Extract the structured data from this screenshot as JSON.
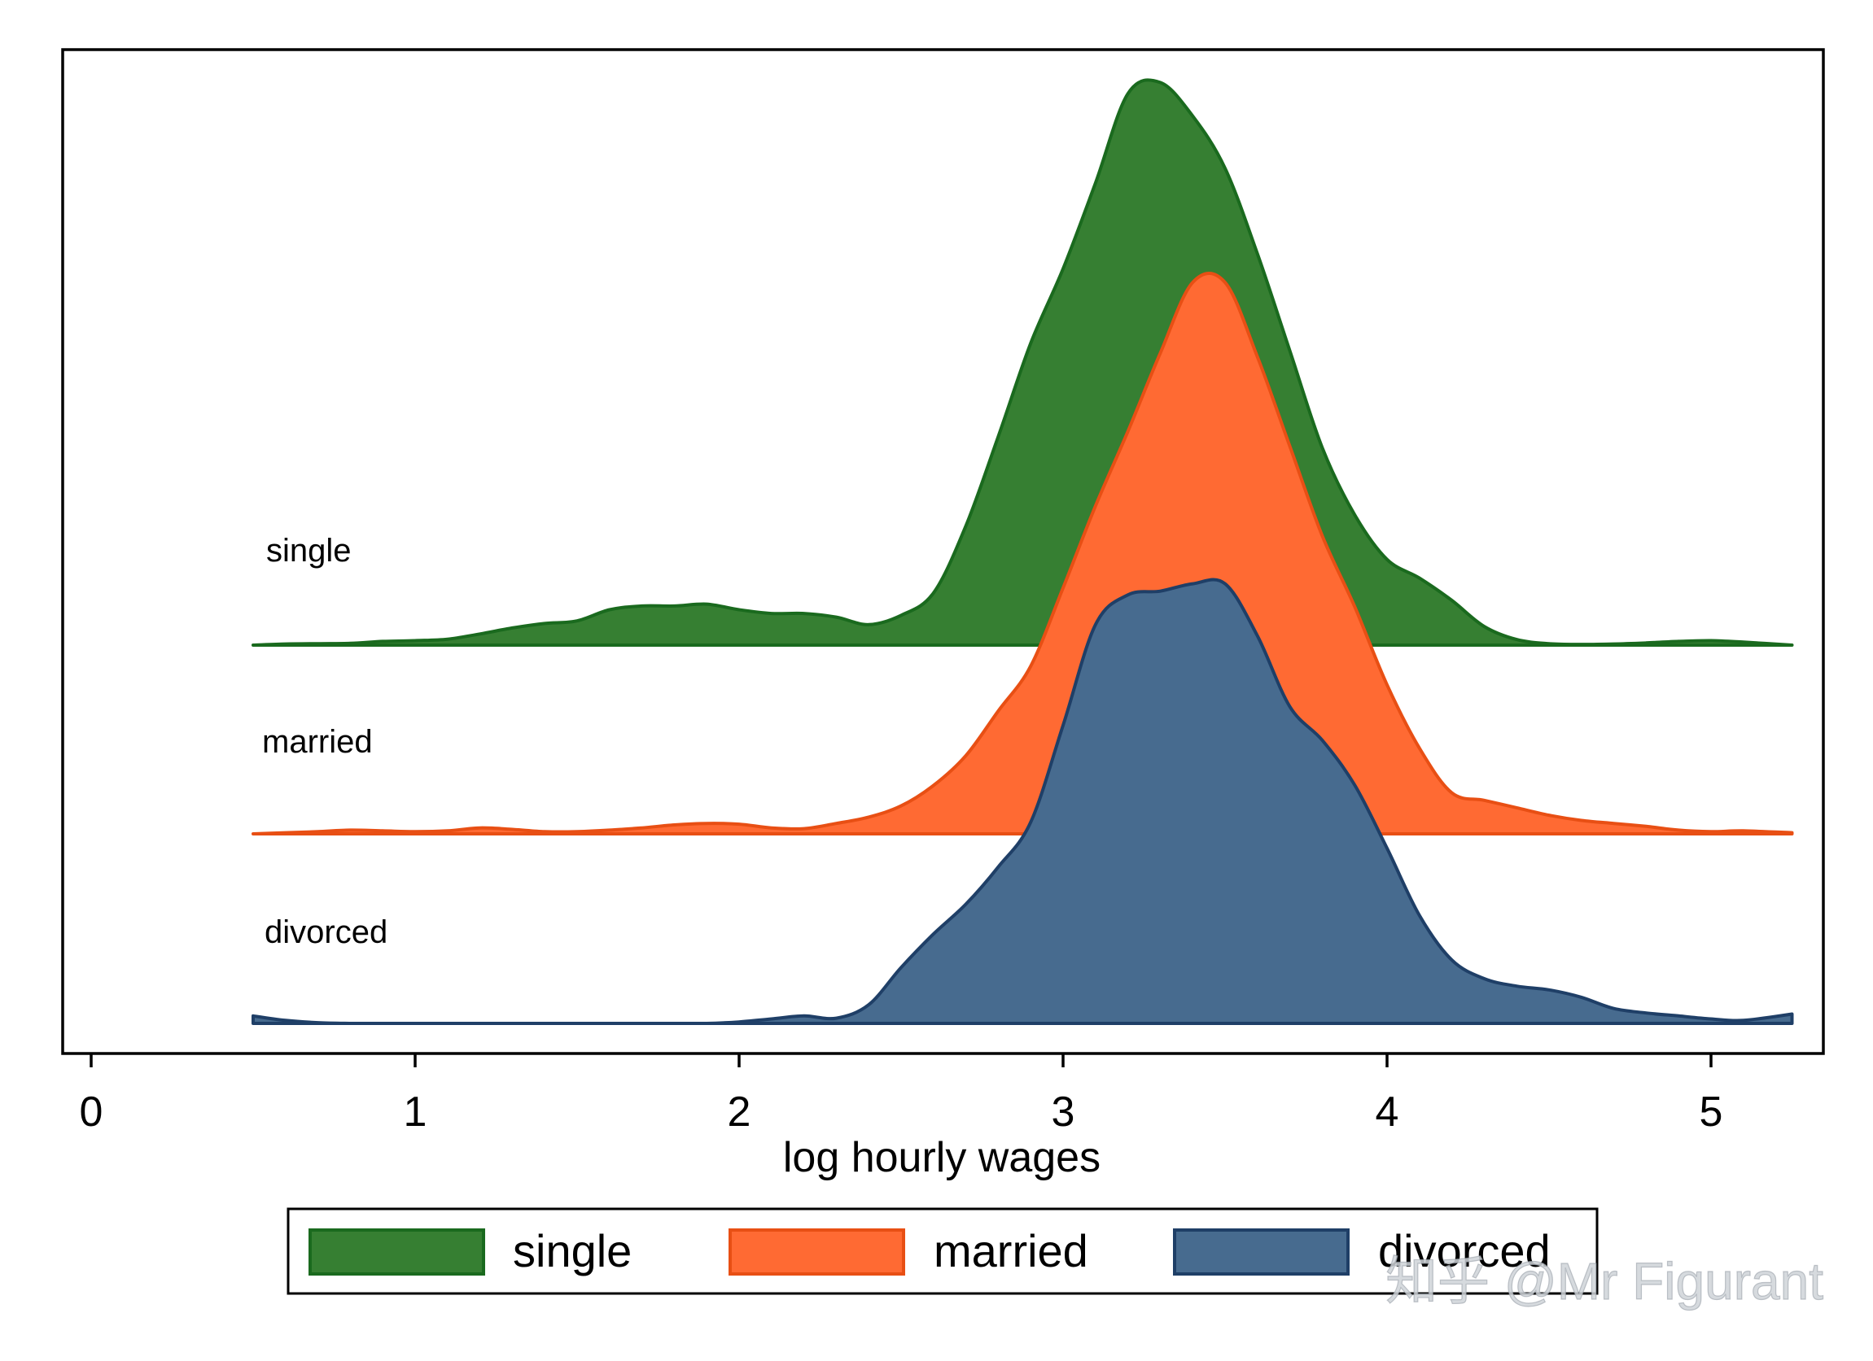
{
  "chart_data": {
    "type": "area",
    "subtype": "ridgeline-density",
    "title": "",
    "xlabel": "log hourly wages",
    "ylabel": "",
    "xlim": [
      0,
      5.3
    ],
    "x_ticks": [
      0,
      1,
      2,
      3,
      4,
      5
    ],
    "x_tick_labels": [
      "0",
      "1",
      "2",
      "3",
      "4",
      "5"
    ],
    "grid": false,
    "legend_position": "bottom",
    "series": [
      {
        "name": "single",
        "label": "single",
        "fill": "#367F32",
        "stroke": "#1A6A1E",
        "x": [
          0.5,
          0.6,
          0.7,
          0.8,
          0.9,
          1.0,
          1.1,
          1.2,
          1.3,
          1.4,
          1.5,
          1.6,
          1.7,
          1.8,
          1.9,
          2.0,
          2.1,
          2.2,
          2.3,
          2.4,
          2.5,
          2.6,
          2.7,
          2.8,
          2.9,
          3.0,
          3.1,
          3.2,
          3.3,
          3.4,
          3.5,
          3.6,
          3.7,
          3.8,
          3.9,
          4.0,
          4.1,
          4.2,
          4.3,
          4.4,
          4.5,
          4.6,
          4.7,
          4.8,
          4.9,
          5.0,
          5.1,
          5.25
        ],
        "density": [
          0.0,
          0.003,
          0.004,
          0.005,
          0.01,
          0.012,
          0.016,
          0.03,
          0.046,
          0.058,
          0.065,
          0.095,
          0.105,
          0.105,
          0.11,
          0.095,
          0.085,
          0.085,
          0.075,
          0.055,
          0.08,
          0.14,
          0.32,
          0.56,
          0.81,
          1.01,
          1.24,
          1.48,
          1.51,
          1.42,
          1.28,
          1.05,
          0.79,
          0.53,
          0.35,
          0.23,
          0.18,
          0.12,
          0.05,
          0.015,
          0.004,
          0.002,
          0.003,
          0.006,
          0.01,
          0.012,
          0.008,
          0.0
        ]
      },
      {
        "name": "married",
        "label": "married",
        "fill": "#FF6A33",
        "stroke": "#E84F14",
        "x": [
          0.5,
          0.6,
          0.7,
          0.8,
          0.9,
          1.0,
          1.1,
          1.2,
          1.3,
          1.4,
          1.5,
          1.6,
          1.7,
          1.8,
          1.9,
          2.0,
          2.1,
          2.2,
          2.3,
          2.4,
          2.5,
          2.6,
          2.7,
          2.8,
          2.9,
          3.0,
          3.1,
          3.2,
          3.3,
          3.4,
          3.5,
          3.6,
          3.7,
          3.8,
          3.9,
          4.0,
          4.1,
          4.2,
          4.3,
          4.4,
          4.5,
          4.6,
          4.7,
          4.8,
          4.9,
          5.0,
          5.1,
          5.25
        ],
        "density": [
          0.0,
          0.003,
          0.006,
          0.01,
          0.008,
          0.006,
          0.008,
          0.016,
          0.012,
          0.006,
          0.006,
          0.01,
          0.016,
          0.024,
          0.028,
          0.026,
          0.016,
          0.014,
          0.028,
          0.045,
          0.075,
          0.13,
          0.21,
          0.33,
          0.45,
          0.66,
          0.88,
          1.08,
          1.29,
          1.48,
          1.48,
          1.28,
          1.04,
          0.8,
          0.61,
          0.4,
          0.23,
          0.11,
          0.09,
          0.07,
          0.05,
          0.036,
          0.028,
          0.02,
          0.01,
          0.006,
          0.008,
          0.003
        ]
      },
      {
        "name": "divorced",
        "label": "divorced",
        "fill": "#476B8F",
        "stroke": "#1F3F67",
        "x": [
          0.5,
          0.6,
          0.7,
          0.8,
          0.9,
          1.0,
          1.1,
          1.2,
          1.3,
          1.4,
          1.5,
          1.6,
          1.7,
          1.8,
          1.9,
          2.0,
          2.1,
          2.2,
          2.3,
          2.4,
          2.5,
          2.6,
          2.7,
          2.8,
          2.9,
          3.0,
          3.1,
          3.2,
          3.3,
          3.4,
          3.5,
          3.6,
          3.7,
          3.8,
          3.9,
          4.0,
          4.1,
          4.2,
          4.3,
          4.4,
          4.5,
          4.6,
          4.7,
          4.8,
          4.9,
          5.0,
          5.1,
          5.25
        ],
        "density": [
          0.02,
          0.008,
          0.002,
          0.0,
          0.0,
          0.0,
          0.0,
          0.0,
          0.0,
          0.0,
          0.0,
          0.0,
          0.0,
          0.0,
          0.0,
          0.004,
          0.012,
          0.02,
          0.014,
          0.05,
          0.15,
          0.24,
          0.32,
          0.42,
          0.54,
          0.8,
          1.07,
          1.15,
          1.16,
          1.18,
          1.18,
          1.04,
          0.85,
          0.76,
          0.64,
          0.47,
          0.29,
          0.17,
          0.12,
          0.1,
          0.09,
          0.07,
          0.04,
          0.028,
          0.02,
          0.012,
          0.008,
          0.025
        ]
      }
    ]
  },
  "watermark": "知乎 @Mr Figurant"
}
